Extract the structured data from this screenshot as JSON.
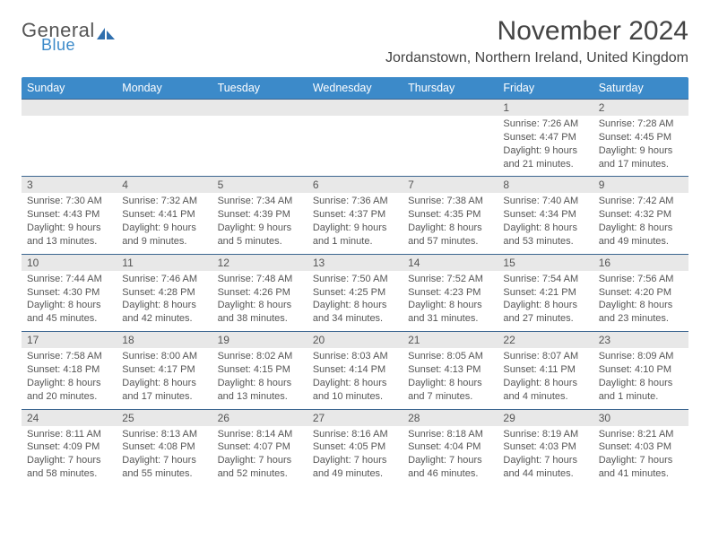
{
  "logo": {
    "word1": "General",
    "word2": "Blue",
    "accent_color": "#2f6fae"
  },
  "title": "November 2024",
  "location": "Jordanstown, Northern Ireland, United Kingdom",
  "colors": {
    "header_bg": "#3c8ac9",
    "header_text": "#ffffff",
    "daynum_bg": "#e8e8e8",
    "daynum_border": "#3c6690",
    "body_text": "#555555",
    "page_bg": "#ffffff"
  },
  "day_headers": [
    "Sunday",
    "Monday",
    "Tuesday",
    "Wednesday",
    "Thursday",
    "Friday",
    "Saturday"
  ],
  "weeks": [
    [
      null,
      null,
      null,
      null,
      null,
      {
        "n": "1",
        "sr": "Sunrise: 7:26 AM",
        "ss": "Sunset: 4:47 PM",
        "d1": "Daylight: 9 hours",
        "d2": "and 21 minutes."
      },
      {
        "n": "2",
        "sr": "Sunrise: 7:28 AM",
        "ss": "Sunset: 4:45 PM",
        "d1": "Daylight: 9 hours",
        "d2": "and 17 minutes."
      }
    ],
    [
      {
        "n": "3",
        "sr": "Sunrise: 7:30 AM",
        "ss": "Sunset: 4:43 PM",
        "d1": "Daylight: 9 hours",
        "d2": "and 13 minutes."
      },
      {
        "n": "4",
        "sr": "Sunrise: 7:32 AM",
        "ss": "Sunset: 4:41 PM",
        "d1": "Daylight: 9 hours",
        "d2": "and 9 minutes."
      },
      {
        "n": "5",
        "sr": "Sunrise: 7:34 AM",
        "ss": "Sunset: 4:39 PM",
        "d1": "Daylight: 9 hours",
        "d2": "and 5 minutes."
      },
      {
        "n": "6",
        "sr": "Sunrise: 7:36 AM",
        "ss": "Sunset: 4:37 PM",
        "d1": "Daylight: 9 hours",
        "d2": "and 1 minute."
      },
      {
        "n": "7",
        "sr": "Sunrise: 7:38 AM",
        "ss": "Sunset: 4:35 PM",
        "d1": "Daylight: 8 hours",
        "d2": "and 57 minutes."
      },
      {
        "n": "8",
        "sr": "Sunrise: 7:40 AM",
        "ss": "Sunset: 4:34 PM",
        "d1": "Daylight: 8 hours",
        "d2": "and 53 minutes."
      },
      {
        "n": "9",
        "sr": "Sunrise: 7:42 AM",
        "ss": "Sunset: 4:32 PM",
        "d1": "Daylight: 8 hours",
        "d2": "and 49 minutes."
      }
    ],
    [
      {
        "n": "10",
        "sr": "Sunrise: 7:44 AM",
        "ss": "Sunset: 4:30 PM",
        "d1": "Daylight: 8 hours",
        "d2": "and 45 minutes."
      },
      {
        "n": "11",
        "sr": "Sunrise: 7:46 AM",
        "ss": "Sunset: 4:28 PM",
        "d1": "Daylight: 8 hours",
        "d2": "and 42 minutes."
      },
      {
        "n": "12",
        "sr": "Sunrise: 7:48 AM",
        "ss": "Sunset: 4:26 PM",
        "d1": "Daylight: 8 hours",
        "d2": "and 38 minutes."
      },
      {
        "n": "13",
        "sr": "Sunrise: 7:50 AM",
        "ss": "Sunset: 4:25 PM",
        "d1": "Daylight: 8 hours",
        "d2": "and 34 minutes."
      },
      {
        "n": "14",
        "sr": "Sunrise: 7:52 AM",
        "ss": "Sunset: 4:23 PM",
        "d1": "Daylight: 8 hours",
        "d2": "and 31 minutes."
      },
      {
        "n": "15",
        "sr": "Sunrise: 7:54 AM",
        "ss": "Sunset: 4:21 PM",
        "d1": "Daylight: 8 hours",
        "d2": "and 27 minutes."
      },
      {
        "n": "16",
        "sr": "Sunrise: 7:56 AM",
        "ss": "Sunset: 4:20 PM",
        "d1": "Daylight: 8 hours",
        "d2": "and 23 minutes."
      }
    ],
    [
      {
        "n": "17",
        "sr": "Sunrise: 7:58 AM",
        "ss": "Sunset: 4:18 PM",
        "d1": "Daylight: 8 hours",
        "d2": "and 20 minutes."
      },
      {
        "n": "18",
        "sr": "Sunrise: 8:00 AM",
        "ss": "Sunset: 4:17 PM",
        "d1": "Daylight: 8 hours",
        "d2": "and 17 minutes."
      },
      {
        "n": "19",
        "sr": "Sunrise: 8:02 AM",
        "ss": "Sunset: 4:15 PM",
        "d1": "Daylight: 8 hours",
        "d2": "and 13 minutes."
      },
      {
        "n": "20",
        "sr": "Sunrise: 8:03 AM",
        "ss": "Sunset: 4:14 PM",
        "d1": "Daylight: 8 hours",
        "d2": "and 10 minutes."
      },
      {
        "n": "21",
        "sr": "Sunrise: 8:05 AM",
        "ss": "Sunset: 4:13 PM",
        "d1": "Daylight: 8 hours",
        "d2": "and 7 minutes."
      },
      {
        "n": "22",
        "sr": "Sunrise: 8:07 AM",
        "ss": "Sunset: 4:11 PM",
        "d1": "Daylight: 8 hours",
        "d2": "and 4 minutes."
      },
      {
        "n": "23",
        "sr": "Sunrise: 8:09 AM",
        "ss": "Sunset: 4:10 PM",
        "d1": "Daylight: 8 hours",
        "d2": "and 1 minute."
      }
    ],
    [
      {
        "n": "24",
        "sr": "Sunrise: 8:11 AM",
        "ss": "Sunset: 4:09 PM",
        "d1": "Daylight: 7 hours",
        "d2": "and 58 minutes."
      },
      {
        "n": "25",
        "sr": "Sunrise: 8:13 AM",
        "ss": "Sunset: 4:08 PM",
        "d1": "Daylight: 7 hours",
        "d2": "and 55 minutes."
      },
      {
        "n": "26",
        "sr": "Sunrise: 8:14 AM",
        "ss": "Sunset: 4:07 PM",
        "d1": "Daylight: 7 hours",
        "d2": "and 52 minutes."
      },
      {
        "n": "27",
        "sr": "Sunrise: 8:16 AM",
        "ss": "Sunset: 4:05 PM",
        "d1": "Daylight: 7 hours",
        "d2": "and 49 minutes."
      },
      {
        "n": "28",
        "sr": "Sunrise: 8:18 AM",
        "ss": "Sunset: 4:04 PM",
        "d1": "Daylight: 7 hours",
        "d2": "and 46 minutes."
      },
      {
        "n": "29",
        "sr": "Sunrise: 8:19 AM",
        "ss": "Sunset: 4:03 PM",
        "d1": "Daylight: 7 hours",
        "d2": "and 44 minutes."
      },
      {
        "n": "30",
        "sr": "Sunrise: 8:21 AM",
        "ss": "Sunset: 4:03 PM",
        "d1": "Daylight: 7 hours",
        "d2": "and 41 minutes."
      }
    ]
  ]
}
